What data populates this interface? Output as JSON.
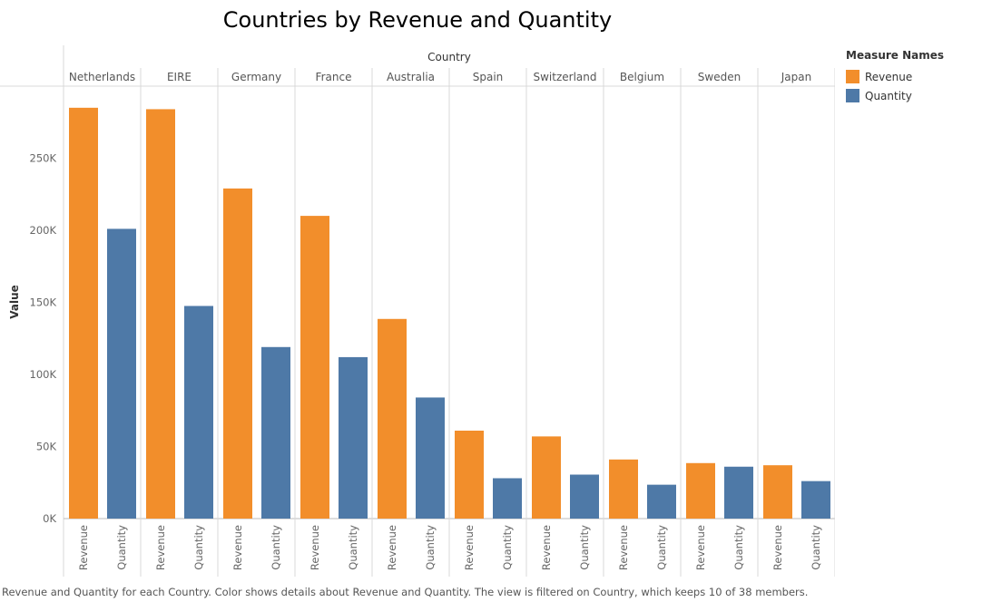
{
  "chart_data": {
    "type": "bar",
    "title": "Countries by Revenue and Quantity",
    "column_header": "Country",
    "ylabel": "Value",
    "ylim": [
      0,
      300000
    ],
    "yticks": [
      0,
      50000,
      100000,
      150000,
      200000,
      250000
    ],
    "ytick_labels": [
      "0K",
      "50K",
      "100K",
      "150K",
      "200K",
      "250K"
    ],
    "countries": [
      "Netherlands",
      "EIRE",
      "Germany",
      "France",
      "Australia",
      "Spain",
      "Switzerland",
      "Belgium",
      "Sweden",
      "Japan"
    ],
    "measures": [
      "Revenue",
      "Quantity"
    ],
    "series": [
      {
        "name": "Revenue",
        "color": "#F28E2B",
        "values": [
          285000,
          284000,
          229000,
          210000,
          138500,
          61000,
          57000,
          41000,
          38500,
          37000
        ]
      },
      {
        "name": "Quantity",
        "color": "#4E79A7",
        "values": [
          201000,
          147500,
          119000,
          112000,
          84000,
          28000,
          30500,
          23500,
          36000,
          26000
        ]
      }
    ],
    "legend": {
      "title": "Measure Names",
      "position": "right"
    },
    "grid": false
  },
  "caption": "Revenue and Quantity for each Country.  Color shows details about Revenue and Quantity. The view is filtered on Country, which keeps 10 of 38 members."
}
